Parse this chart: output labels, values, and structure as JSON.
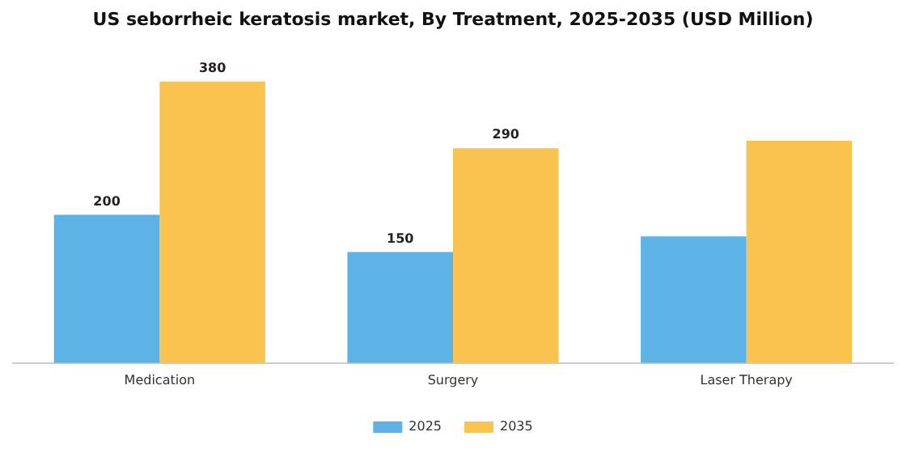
{
  "chart_data": {
    "type": "bar",
    "title": "US seborrheic keratosis market, By Treatment, 2025-2035 (USD Million)",
    "categories": [
      "Medication",
      "Surgery",
      "Laser Therapy"
    ],
    "series": [
      {
        "name": "2025",
        "color": "#5db3e6",
        "values": [
          200,
          150,
          171
        ],
        "value_labels": [
          "200",
          "150",
          null
        ]
      },
      {
        "name": "2035",
        "color": "#f9c34d",
        "values": [
          380,
          290,
          300
        ],
        "value_labels": [
          "380",
          "290",
          null
        ]
      }
    ],
    "legend": "bottom",
    "grid": false
  }
}
